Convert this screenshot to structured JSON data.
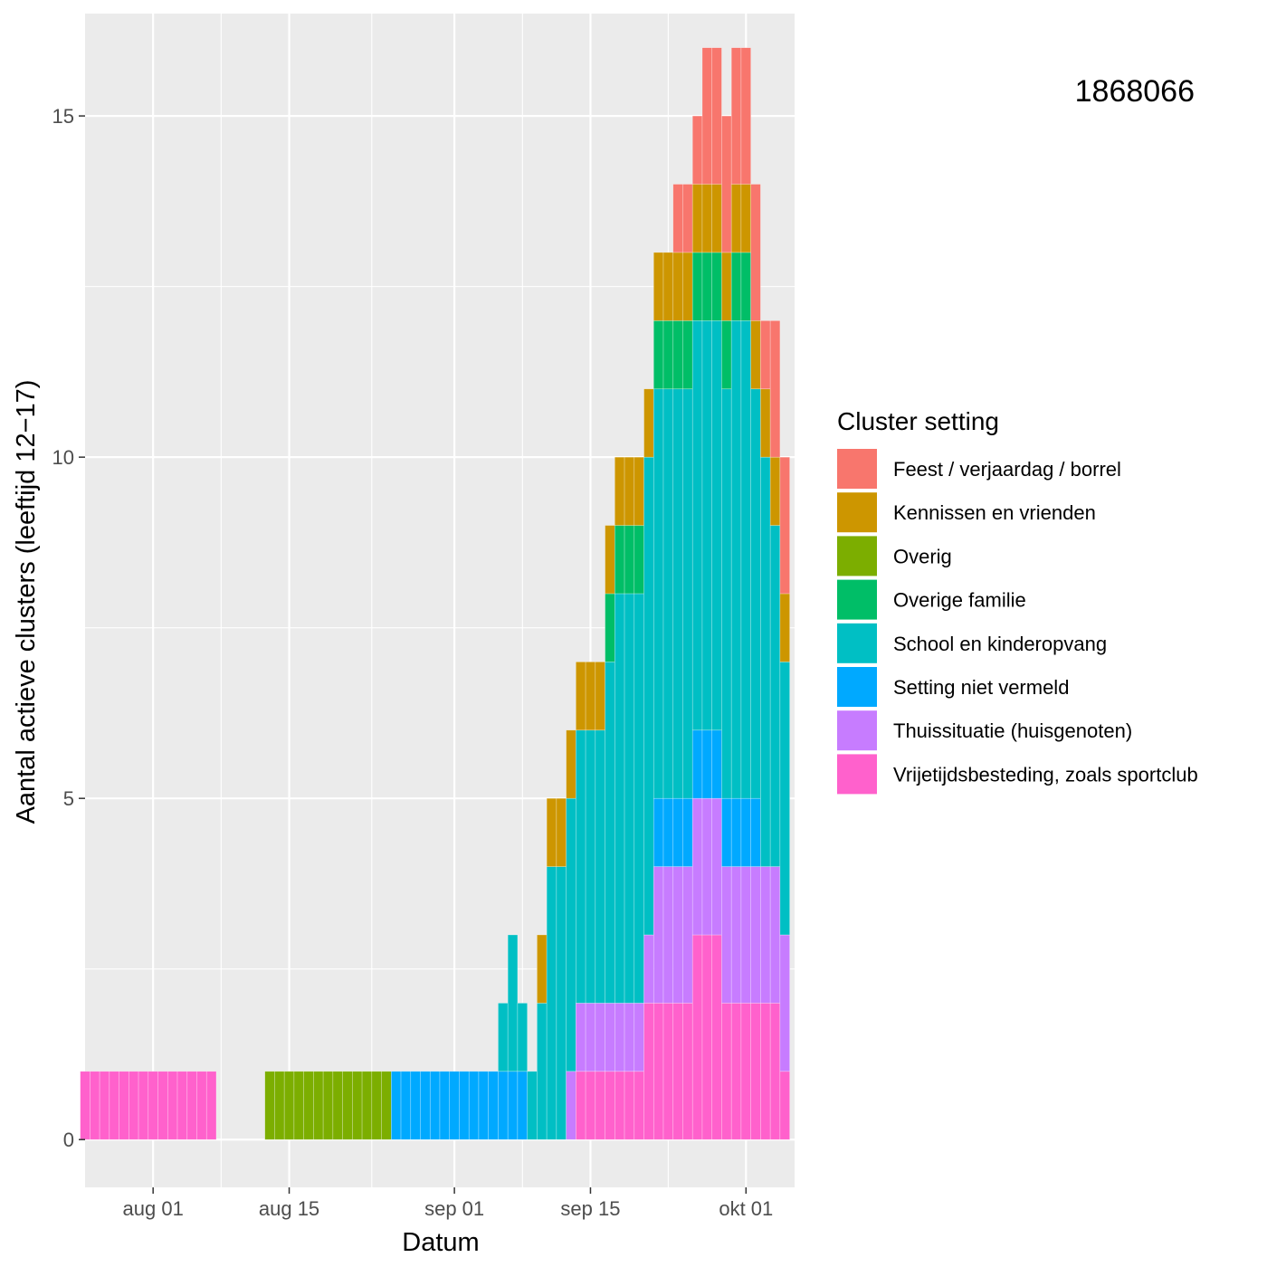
{
  "chart_data": {
    "type": "bar",
    "stacked": true,
    "xlabel": "Datum",
    "ylabel": "Aantal actieve clusters (leeftijd 12−17)",
    "ylim": [
      -0.7,
      16.5
    ],
    "xlim": [
      "2020-07-25",
      "2020-10-06"
    ],
    "y_ticks": [
      0,
      5,
      10,
      15
    ],
    "x_ticks": [
      {
        "date": "2020-08-01",
        "label": "aug 01"
      },
      {
        "date": "2020-08-15",
        "label": "aug 15"
      },
      {
        "date": "2020-09-01",
        "label": "sep 01"
      },
      {
        "date": "2020-09-15",
        "label": "sep 15"
      },
      {
        "date": "2020-10-01",
        "label": "okt 01"
      }
    ],
    "grid": true,
    "legend_position": "right",
    "legend_title": "Cluster setting",
    "annotation": "1868066",
    "series": [
      {
        "name": "Vrijetijdsbesteding, zoals sportclub",
        "color": "#FF61CC"
      },
      {
        "name": "Thuissituatie (huisgenoten)",
        "color": "#C77CFF"
      },
      {
        "name": "Setting niet vermeld",
        "color": "#00A9FF"
      },
      {
        "name": "School en kinderopvang",
        "color": "#00BFC4"
      },
      {
        "name": "Overige familie",
        "color": "#00BE67"
      },
      {
        "name": "Overig",
        "color": "#7CAE00"
      },
      {
        "name": "Kennissen en vrienden",
        "color": "#CD9600"
      },
      {
        "name": "Feest / verjaardag / borrel",
        "color": "#F8766D"
      }
    ],
    "legend_order": [
      "Feest / verjaardag / borrel",
      "Kennissen en vrienden",
      "Overig",
      "Overige familie",
      "School en kinderopvang",
      "Setting niet vermeld",
      "Thuissituatie (huisgenoten)",
      "Vrijetijdsbesteding, zoals sportclub"
    ],
    "series_order_bottom_to_top": [
      "Vrijetijdsbesteding, zoals sportclub",
      "Thuissituatie (huisgenoten)",
      "Setting niet vermeld",
      "School en kinderopvang",
      "Overige familie",
      "Overig",
      "Kennissen en vrienden",
      "Feest / verjaardag / borrel"
    ],
    "dates": [
      "2020-07-25",
      "2020-07-26",
      "2020-07-27",
      "2020-07-28",
      "2020-07-29",
      "2020-07-30",
      "2020-07-31",
      "2020-08-01",
      "2020-08-02",
      "2020-08-03",
      "2020-08-04",
      "2020-08-05",
      "2020-08-06",
      "2020-08-07",
      "2020-08-08",
      "2020-08-09",
      "2020-08-10",
      "2020-08-11",
      "2020-08-12",
      "2020-08-13",
      "2020-08-14",
      "2020-08-15",
      "2020-08-16",
      "2020-08-17",
      "2020-08-18",
      "2020-08-19",
      "2020-08-20",
      "2020-08-21",
      "2020-08-22",
      "2020-08-23",
      "2020-08-24",
      "2020-08-25",
      "2020-08-26",
      "2020-08-27",
      "2020-08-28",
      "2020-08-29",
      "2020-08-30",
      "2020-08-31",
      "2020-09-01",
      "2020-09-02",
      "2020-09-03",
      "2020-09-04",
      "2020-09-05",
      "2020-09-06",
      "2020-09-07",
      "2020-09-08",
      "2020-09-09",
      "2020-09-10",
      "2020-09-11",
      "2020-09-12",
      "2020-09-13",
      "2020-09-14",
      "2020-09-15",
      "2020-09-16",
      "2020-09-17",
      "2020-09-18",
      "2020-09-19",
      "2020-09-20",
      "2020-09-21",
      "2020-09-22",
      "2020-09-23",
      "2020-09-24",
      "2020-09-25",
      "2020-09-26",
      "2020-09-27",
      "2020-09-28",
      "2020-09-29",
      "2020-09-30",
      "2020-10-01",
      "2020-10-02",
      "2020-10-03",
      "2020-10-04",
      "2020-10-05"
    ],
    "values": {
      "Vrijetijdsbesteding, zoals sportclub": [
        1,
        1,
        1,
        1,
        1,
        1,
        1,
        1,
        1,
        1,
        1,
        1,
        1,
        1,
        0,
        0,
        0,
        0,
        0,
        0,
        0,
        0,
        0,
        0,
        0,
        0,
        0,
        0,
        0,
        0,
        0,
        0,
        0,
        0,
        0,
        0,
        0,
        0,
        0,
        0,
        0,
        0,
        0,
        0,
        0,
        0,
        0,
        0,
        0,
        0,
        0,
        1,
        1,
        1,
        1,
        1,
        1,
        1,
        2,
        2,
        2,
        2,
        2,
        3,
        3,
        3,
        2,
        2,
        2,
        2,
        2,
        2,
        1
      ],
      "Thuissituatie (huisgenoten)": [
        0,
        0,
        0,
        0,
        0,
        0,
        0,
        0,
        0,
        0,
        0,
        0,
        0,
        0,
        0,
        0,
        0,
        0,
        0,
        0,
        0,
        0,
        0,
        0,
        0,
        0,
        0,
        0,
        0,
        0,
        0,
        0,
        0,
        0,
        0,
        0,
        0,
        0,
        0,
        0,
        0,
        0,
        0,
        0,
        0,
        0,
        0,
        0,
        0,
        0,
        1,
        1,
        1,
        1,
        1,
        1,
        1,
        1,
        1,
        2,
        2,
        2,
        2,
        2,
        2,
        2,
        2,
        2,
        2,
        2,
        2,
        2,
        2
      ],
      "Setting niet vermeld": [
        0,
        0,
        0,
        0,
        0,
        0,
        0,
        0,
        0,
        0,
        0,
        0,
        0,
        0,
        0,
        0,
        0,
        0,
        0,
        0,
        0,
        0,
        0,
        0,
        0,
        0,
        0,
        0,
        0,
        0,
        0,
        0,
        1,
        1,
        1,
        1,
        1,
        1,
        1,
        1,
        1,
        1,
        1,
        1,
        1,
        1,
        0,
        0,
        0,
        0,
        0,
        0,
        0,
        0,
        0,
        0,
        0,
        0,
        0,
        1,
        1,
        1,
        1,
        1,
        1,
        1,
        1,
        1,
        1,
        1,
        0,
        0,
        0
      ],
      "School en kinderopvang": [
        0,
        0,
        0,
        0,
        0,
        0,
        0,
        0,
        0,
        0,
        0,
        0,
        0,
        0,
        0,
        0,
        0,
        0,
        0,
        0,
        0,
        0,
        0,
        0,
        0,
        0,
        0,
        0,
        0,
        0,
        0,
        0,
        0,
        0,
        0,
        0,
        0,
        0,
        0,
        0,
        0,
        0,
        0,
        1,
        2,
        1,
        1,
        2,
        4,
        4,
        4,
        4,
        4,
        4,
        5,
        6,
        6,
        6,
        7,
        6,
        6,
        6,
        6,
        6,
        6,
        6,
        6,
        7,
        7,
        6,
        6,
        5,
        4
      ],
      "Overige familie": [
        0,
        0,
        0,
        0,
        0,
        0,
        0,
        0,
        0,
        0,
        0,
        0,
        0,
        0,
        0,
        0,
        0,
        0,
        0,
        0,
        0,
        0,
        0,
        0,
        0,
        0,
        0,
        0,
        0,
        0,
        0,
        0,
        0,
        0,
        0,
        0,
        0,
        0,
        0,
        0,
        0,
        0,
        0,
        0,
        0,
        0,
        0,
        0,
        0,
        0,
        0,
        0,
        0,
        0,
        1,
        1,
        1,
        1,
        0,
        1,
        1,
        1,
        1,
        1,
        1,
        1,
        1,
        1,
        1,
        0,
        0,
        0,
        0
      ],
      "Overig": [
        0,
        0,
        0,
        0,
        0,
        0,
        0,
        0,
        0,
        0,
        0,
        0,
        0,
        0,
        0,
        0,
        0,
        0,
        0,
        1,
        1,
        1,
        1,
        1,
        1,
        1,
        1,
        1,
        1,
        1,
        1,
        1,
        0,
        0,
        0,
        0,
        0,
        0,
        0,
        0,
        0,
        0,
        0,
        0,
        0,
        0,
        0,
        0,
        0,
        0,
        0,
        0,
        0,
        0,
        0,
        0,
        0,
        0,
        0,
        0,
        0,
        0,
        0,
        0,
        0,
        0,
        0,
        0,
        0,
        0,
        0,
        0,
        0
      ],
      "Kennissen en vrienden": [
        0,
        0,
        0,
        0,
        0,
        0,
        0,
        0,
        0,
        0,
        0,
        0,
        0,
        0,
        0,
        0,
        0,
        0,
        0,
        0,
        0,
        0,
        0,
        0,
        0,
        0,
        0,
        0,
        0,
        0,
        0,
        0,
        0,
        0,
        0,
        0,
        0,
        0,
        0,
        0,
        0,
        0,
        0,
        0,
        0,
        0,
        0,
        1,
        1,
        1,
        1,
        1,
        1,
        1,
        1,
        1,
        1,
        1,
        1,
        1,
        1,
        1,
        1,
        1,
        1,
        1,
        1,
        1,
        1,
        1,
        1,
        1,
        1
      ],
      "Feest / verjaardag / borrel": [
        0,
        0,
        0,
        0,
        0,
        0,
        0,
        0,
        0,
        0,
        0,
        0,
        0,
        0,
        0,
        0,
        0,
        0,
        0,
        0,
        0,
        0,
        0,
        0,
        0,
        0,
        0,
        0,
        0,
        0,
        0,
        0,
        0,
        0,
        0,
        0,
        0,
        0,
        0,
        0,
        0,
        0,
        0,
        0,
        0,
        0,
        0,
        0,
        0,
        0,
        0,
        0,
        0,
        0,
        0,
        0,
        0,
        0,
        0,
        0,
        0,
        1,
        1,
        1,
        2,
        2,
        2,
        2,
        2,
        2,
        1,
        2,
        2
      ]
    }
  }
}
